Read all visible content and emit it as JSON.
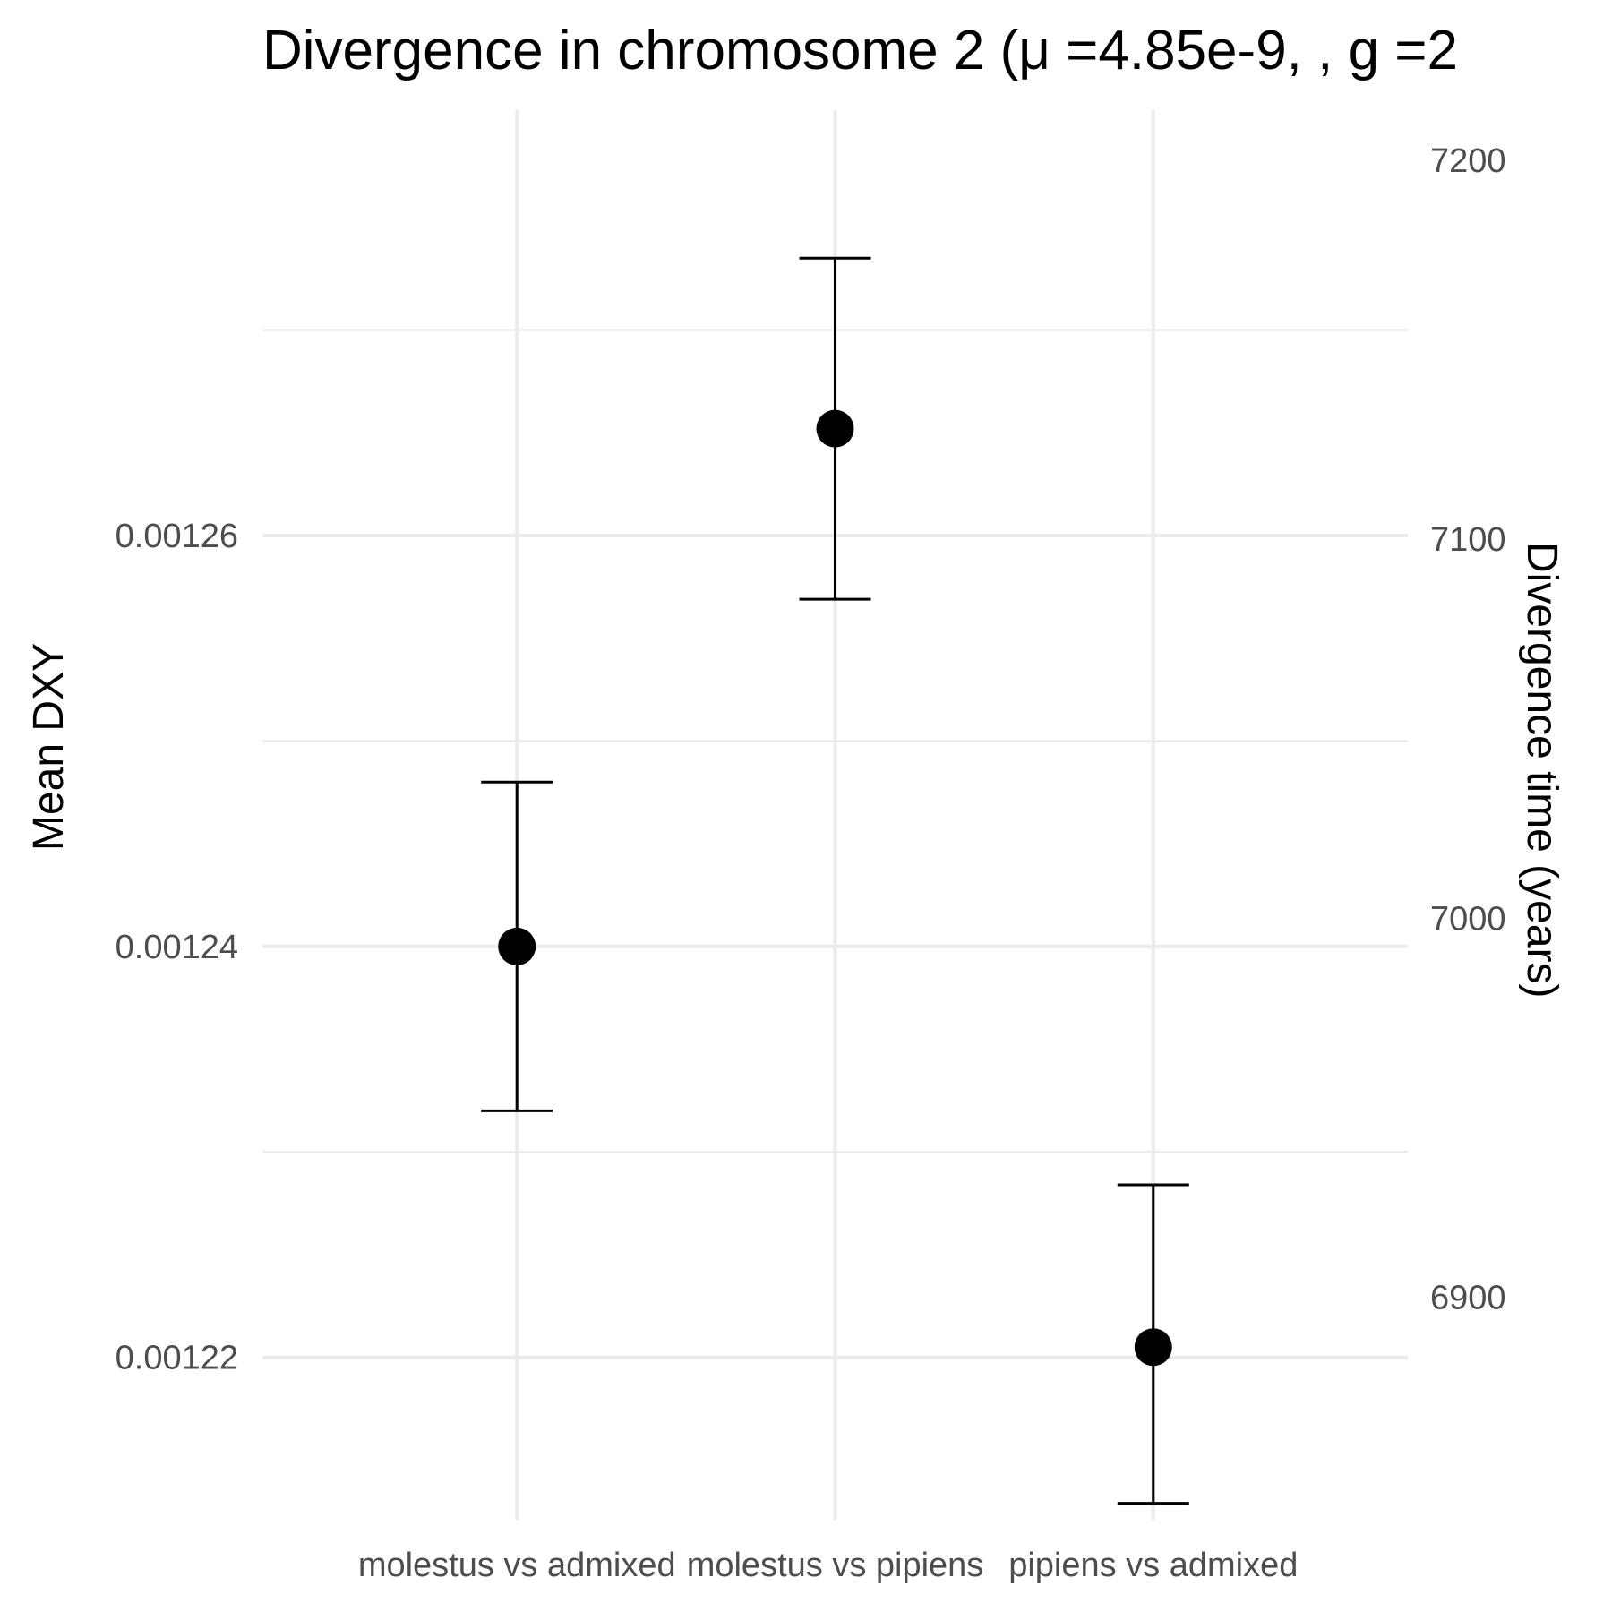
{
  "chart_data": {
    "type": "scatter",
    "title": "Divergence in chromosome 2 (μ =4.85e-9, ,  g =2",
    "xlabel": "",
    "ylabel": "Mean DXY",
    "y2label": "Divergence time (years)",
    "categories": [
      "molestus vs admixed",
      "molestus vs pipiens",
      "pipiens vs admixed"
    ],
    "points": [
      {
        "category": "molestus vs admixed",
        "y": 0.00124,
        "ymin": 0.001232,
        "ymax": 0.001248
      },
      {
        "category": "molestus vs pipiens",
        "y": 0.0012652,
        "ymin": 0.0012569,
        "ymax": 0.0012735
      },
      {
        "category": "pipiens vs admixed",
        "y": 0.0012205,
        "ymin": 0.0012129,
        "ymax": 0.0012284
      }
    ],
    "ylim": [
      0.0012121,
      0.0012807
    ],
    "yticks": [
      0.00122,
      0.00124,
      0.00126
    ],
    "ytick_labels": [
      "0.00122",
      "0.00124",
      "0.00126"
    ],
    "y2lim": [
      6841.3,
      7213.2
    ],
    "y2ticks": [
      6900,
      7000,
      7100,
      7200
    ],
    "y2tick_labels": [
      "6900",
      "7000",
      "7100",
      "7200"
    ],
    "grid": true,
    "legend": "none",
    "colors": {
      "point": "#000000",
      "grid": "#ebebeb",
      "tick_text": "#4d4d4d"
    }
  }
}
